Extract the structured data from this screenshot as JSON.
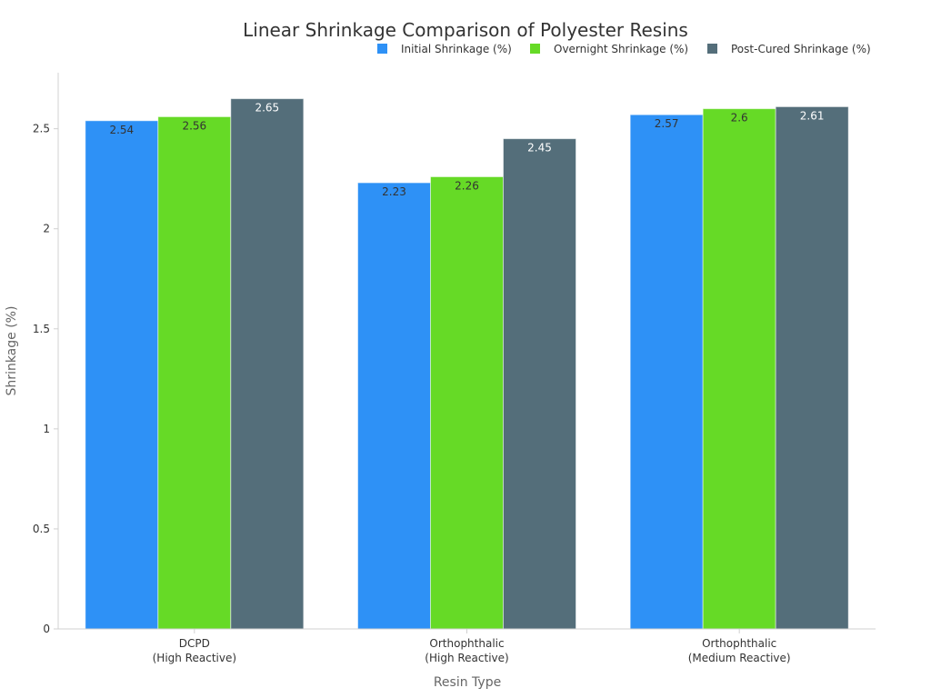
{
  "chart_data": {
    "type": "bar",
    "title": "Linear Shrinkage Comparison of Polyester Resins",
    "xlabel": "Resin Type",
    "ylabel": "Shrinkage (%)",
    "ylim": [
      0,
      2.78
    ],
    "yticks": [
      "0",
      "0.5",
      "1",
      "1.5",
      "2",
      "2.5"
    ],
    "grid": false,
    "legend_position": "top-right",
    "categories": [
      [
        "DCPD",
        "(High Reactive)"
      ],
      [
        "Orthophthalic",
        "(High Reactive)"
      ],
      [
        "Orthophthalic",
        "(Medium Reactive)"
      ]
    ],
    "series": [
      {
        "name": "Initial Shrinkage (%)",
        "color": "#2e91f6",
        "label_color": "#333333",
        "values": [
          2.54,
          2.23,
          2.57
        ]
      },
      {
        "name": "Overnight Shrinkage (%)",
        "color": "#66da26",
        "label_color": "#333333",
        "values": [
          2.56,
          2.26,
          2.6
        ]
      },
      {
        "name": "Post-Cured Shrinkage (%)",
        "color": "#546e7a",
        "label_color": "#ffffff",
        "values": [
          2.65,
          2.45,
          2.61
        ]
      }
    ]
  }
}
